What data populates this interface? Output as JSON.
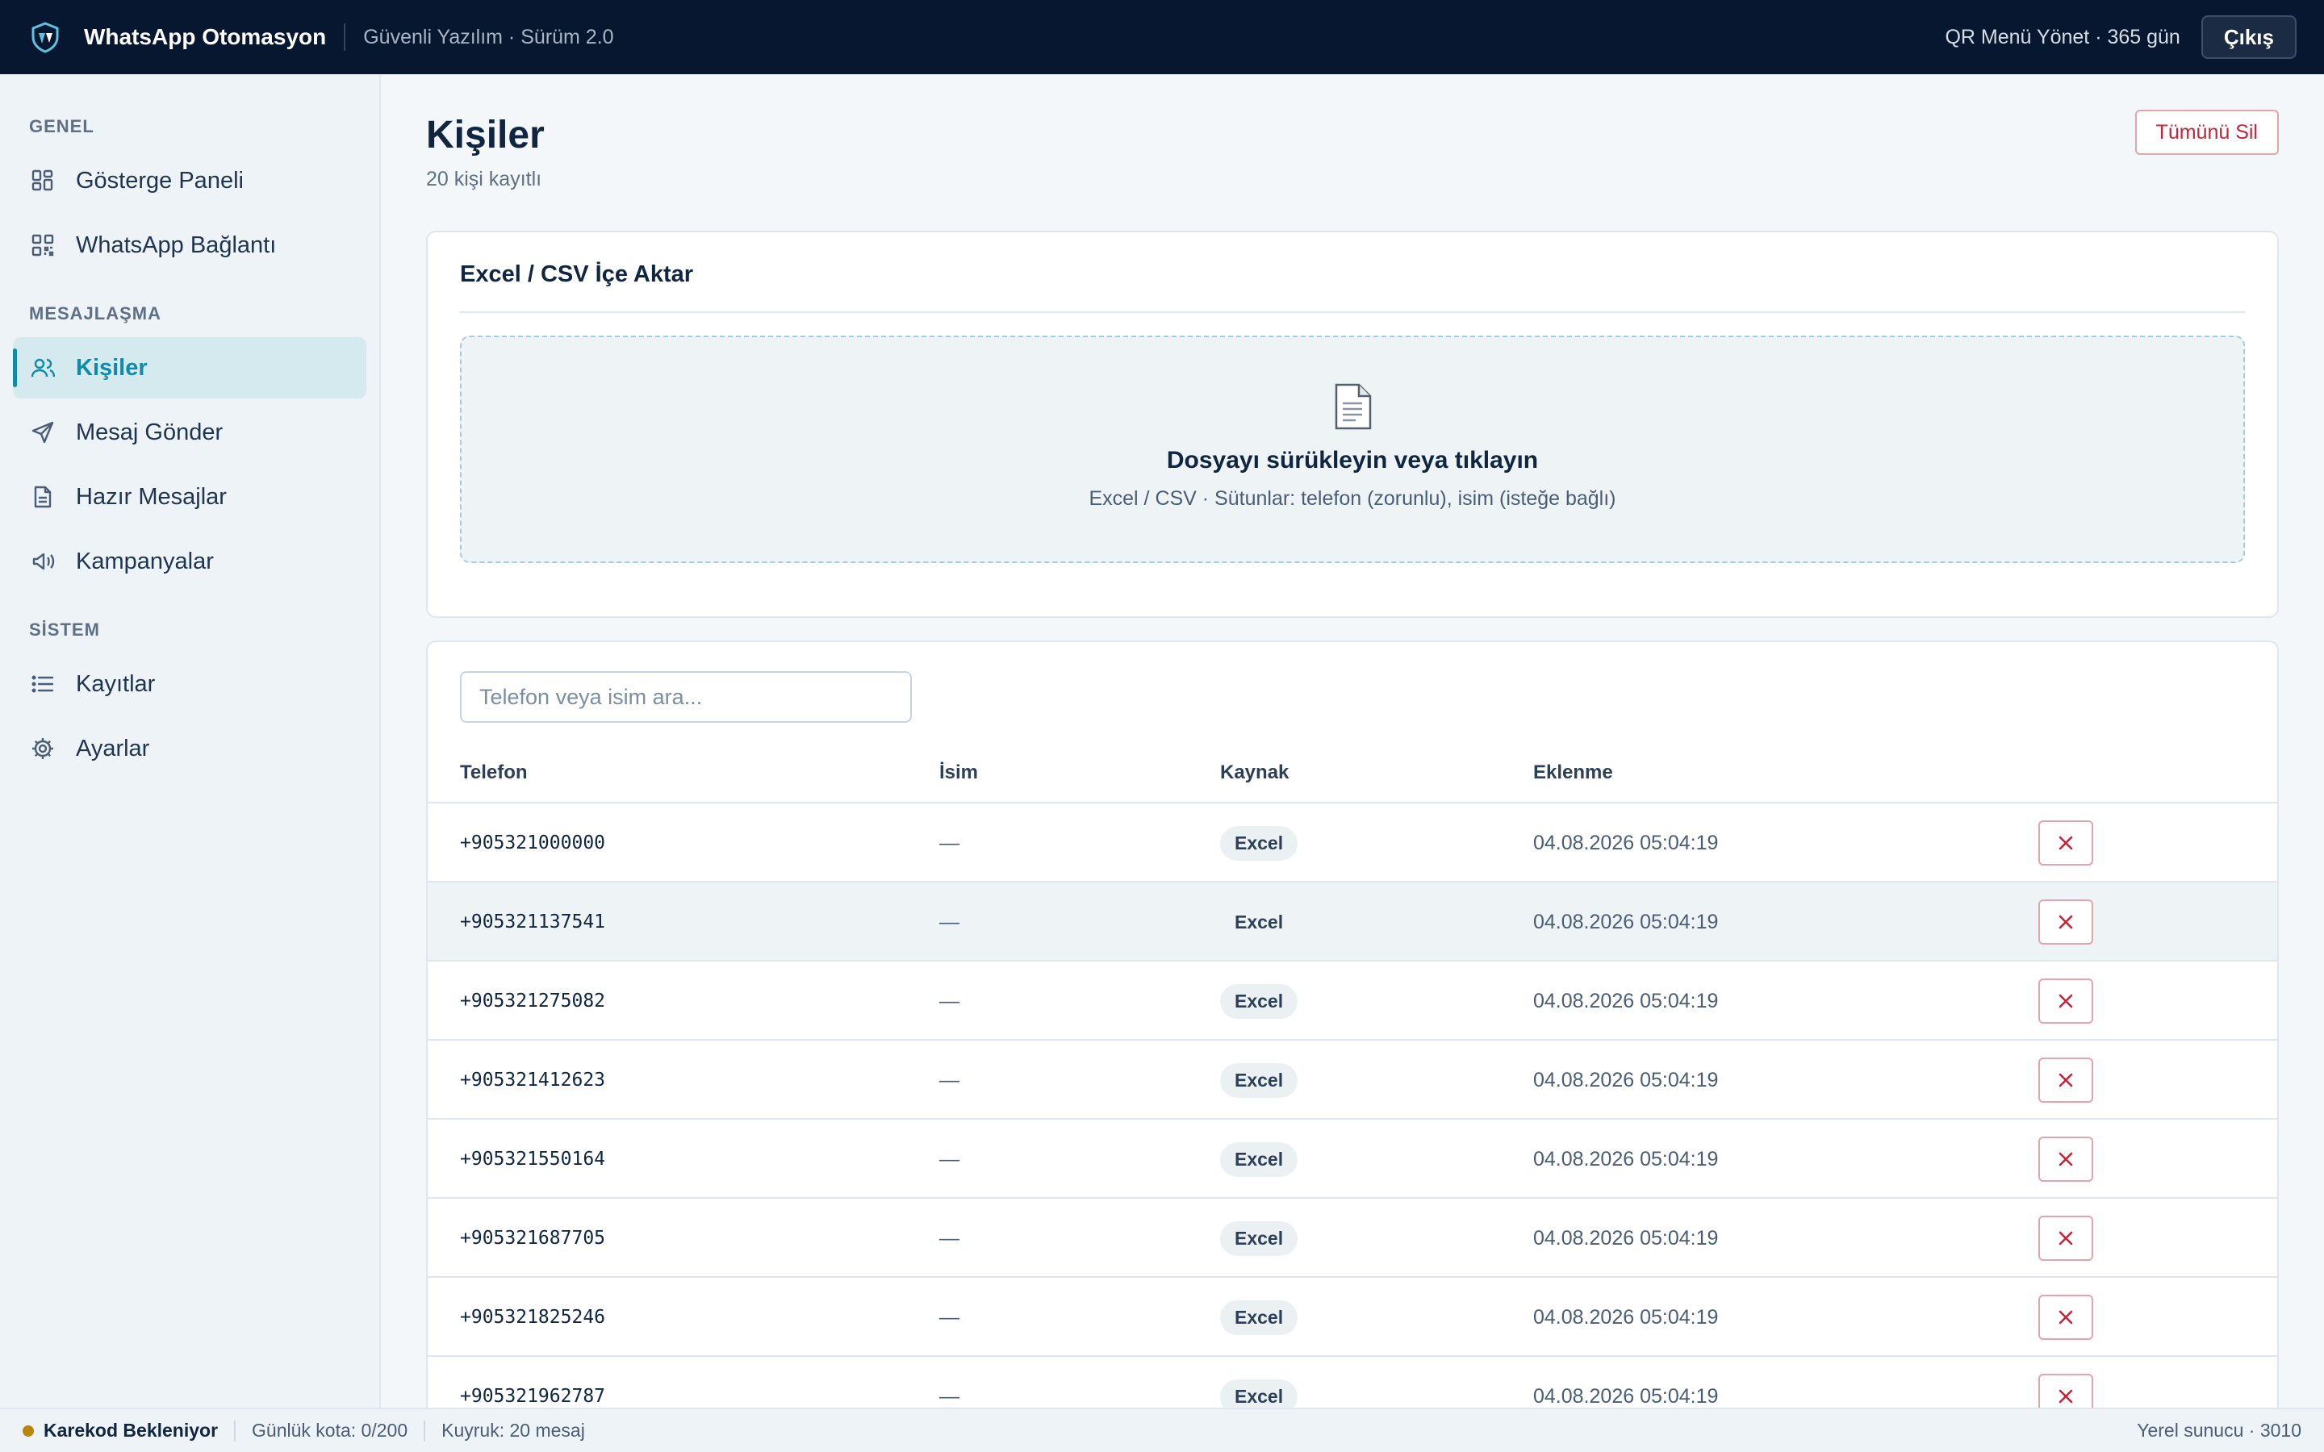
{
  "topbar": {
    "app_title": "WhatsApp Otomasyon",
    "app_subtitle": "Güvenli Yazılım · Sürüm 2.0",
    "qr_info": "QR Menü Yönet · 365 gün",
    "logout_label": "Çıkış"
  },
  "sidebar": {
    "sections": [
      {
        "title": "GENEL",
        "items": [
          {
            "label": "Gösterge Paneli",
            "icon": "dashboard-icon"
          },
          {
            "label": "WhatsApp Bağlantı",
            "icon": "qr-code-icon"
          }
        ]
      },
      {
        "title": "MESAJLAŞMA",
        "items": [
          {
            "label": "Kişiler",
            "icon": "users-icon",
            "active": true
          },
          {
            "label": "Mesaj Gönder",
            "icon": "send-icon"
          },
          {
            "label": "Hazır Mesajlar",
            "icon": "document-icon"
          },
          {
            "label": "Kampanyalar",
            "icon": "megaphone-icon"
          }
        ]
      },
      {
        "title": "SİSTEM",
        "items": [
          {
            "label": "Kayıtlar",
            "icon": "list-icon"
          },
          {
            "label": "Ayarlar",
            "icon": "gear-icon"
          }
        ]
      }
    ]
  },
  "page": {
    "title": "Kişiler",
    "subtitle": "20 kişi kayıtlı",
    "delete_all_label": "Tümünü Sil"
  },
  "import": {
    "title": "Excel / CSV İçe Aktar",
    "drop_title": "Dosyayı sürükleyin veya tıklayın",
    "drop_hint": "Excel / CSV · Sütunlar: telefon (zorunlu), isim (isteğe bağlı)"
  },
  "contacts": {
    "search_placeholder": "Telefon veya isim ara...",
    "columns": [
      "Telefon",
      "İsim",
      "Kaynak",
      "Eklenme"
    ],
    "rows": [
      {
        "phone": "+905321000000",
        "name": "—",
        "source": "Excel",
        "added": "04.08.2026 05:04:19"
      },
      {
        "phone": "+905321137541",
        "name": "—",
        "source": "Excel",
        "added": "04.08.2026 05:04:19"
      },
      {
        "phone": "+905321275082",
        "name": "—",
        "source": "Excel",
        "added": "04.08.2026 05:04:19"
      },
      {
        "phone": "+905321412623",
        "name": "—",
        "source": "Excel",
        "added": "04.08.2026 05:04:19"
      },
      {
        "phone": "+905321550164",
        "name": "—",
        "source": "Excel",
        "added": "04.08.2026 05:04:19"
      },
      {
        "phone": "+905321687705",
        "name": "—",
        "source": "Excel",
        "added": "04.08.2026 05:04:19"
      },
      {
        "phone": "+905321825246",
        "name": "—",
        "source": "Excel",
        "added": "04.08.2026 05:04:19"
      },
      {
        "phone": "+905321962787",
        "name": "—",
        "source": "Excel",
        "added": "04.08.2026 05:04:19"
      }
    ]
  },
  "statusbar": {
    "qr_status": "Karekod Bekleniyor",
    "quota": "Günlük kota: 0/200",
    "queue": "Kuyruk: 20 mesaj",
    "server": "Yerel sunucu · 3010"
  },
  "colors": {
    "topbar_bg": "#07172f",
    "accent": "#0f8aa8",
    "danger": "#c4253a",
    "status_dot": "#b8860b"
  }
}
